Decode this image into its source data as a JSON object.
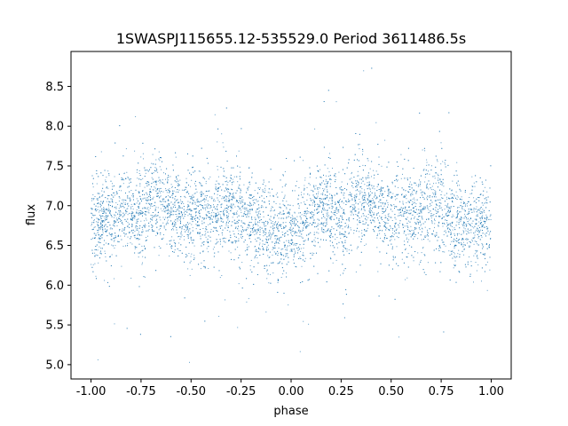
{
  "chart_data": {
    "type": "scatter",
    "title": "1SWASPJ115655.12-535529.0 Period 3611486.5s",
    "xlabel": "phase",
    "ylabel": "flux",
    "xlim": [
      -1.1,
      1.1
    ],
    "ylim": [
      4.82,
      8.94
    ],
    "xticks": [
      "-1.00",
      "-0.75",
      "-0.50",
      "-0.25",
      "0.00",
      "0.25",
      "0.50",
      "0.75",
      "1.00"
    ],
    "yticks": [
      "5.0",
      "5.5",
      "6.0",
      "6.5",
      "7.0",
      "7.5",
      "8.0",
      "8.5"
    ],
    "grid": false,
    "point_color": "#1f77b4",
    "series": [
      {
        "x": [
          -1.0,
          -0.98,
          -0.96,
          -0.93,
          -0.9,
          -0.87,
          -0.84,
          -0.81,
          -0.78,
          -0.75,
          -0.72,
          -0.69,
          -0.66,
          -0.63,
          -0.6,
          -0.57,
          -0.54,
          -0.51,
          -0.48,
          -0.45,
          -0.42,
          -0.39,
          -0.36,
          -0.33,
          -0.3,
          -0.27,
          -0.24,
          -0.21,
          -0.18,
          -0.15,
          -0.12,
          -0.09,
          -0.06,
          -0.03,
          0.0,
          0.03,
          0.06,
          0.09,
          0.12,
          0.15,
          0.18,
          0.21,
          0.24,
          0.27,
          0.3,
          0.33,
          0.36,
          0.39,
          0.42,
          0.45,
          0.48,
          0.51,
          0.54,
          0.57,
          0.6,
          0.63,
          0.66,
          0.69,
          0.72,
          0.75,
          0.78,
          0.81,
          0.84,
          0.87,
          0.9,
          0.93,
          0.96,
          0.98,
          1.0
        ],
        "y": [
          6.7,
          6.75,
          6.8,
          6.85,
          6.8,
          6.85,
          6.95,
          6.9,
          6.85,
          6.95,
          7.0,
          7.1,
          7.1,
          7.05,
          7.0,
          6.9,
          6.85,
          6.8,
          6.85,
          6.9,
          6.85,
          6.9,
          6.95,
          7.0,
          6.95,
          6.9,
          6.85,
          6.8,
          6.75,
          6.8,
          6.75,
          6.7,
          6.65,
          6.7,
          6.65,
          6.7,
          6.75,
          6.85,
          6.9,
          6.95,
          7.0,
          6.95,
          6.9,
          6.85,
          7.0,
          7.1,
          7.05,
          7.05,
          7.0,
          6.9,
          6.85,
          6.8,
          6.85,
          6.9,
          6.85,
          6.9,
          6.95,
          7.0,
          6.95,
          6.9,
          6.85,
          6.8,
          6.8,
          6.75,
          6.8,
          6.75,
          6.75,
          6.7,
          6.7
        ]
      }
    ]
  }
}
